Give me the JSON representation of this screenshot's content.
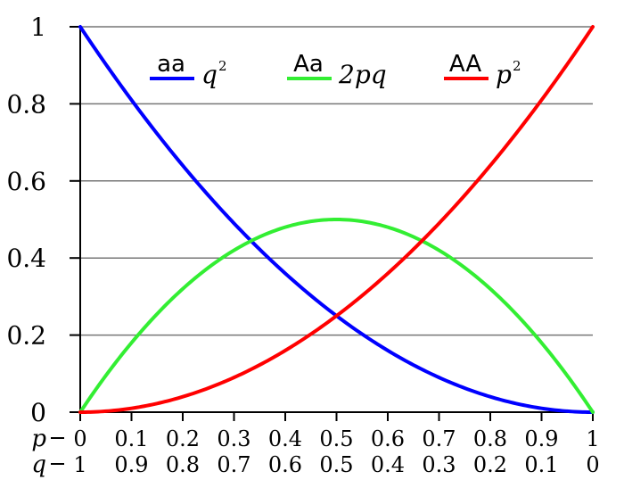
{
  "chart_data": {
    "type": "line",
    "title": "",
    "xlabel": "",
    "ylabel": "",
    "xlim": [
      0,
      1
    ],
    "ylim": [
      0,
      1
    ],
    "grid": "horizontal",
    "x_tick_rows": [
      {
        "label": "p",
        "ticks": [
          "0",
          "0.1",
          "0.2",
          "0.3",
          "0.4",
          "0.5",
          "0.6",
          "0.7",
          "0.8",
          "0.9",
          "1"
        ]
      },
      {
        "label": "q",
        "ticks": [
          "1",
          "0.9",
          "0.8",
          "0.7",
          "0.6",
          "0.5",
          "0.4",
          "0.3",
          "0.2",
          "0.1",
          "0"
        ]
      }
    ],
    "y_ticks": [
      "0",
      "0.2",
      "0.4",
      "0.6",
      "0.8",
      "1"
    ],
    "x": [
      0,
      0.1,
      0.2,
      0.3,
      0.4,
      0.5,
      0.6,
      0.7,
      0.8,
      0.9,
      1
    ],
    "legend_position": "top",
    "series": [
      {
        "name": "aa",
        "expression": "q",
        "superscript": "2",
        "color": "#0000ff",
        "values": [
          1,
          0.81,
          0.64,
          0.49,
          0.36,
          0.25,
          0.16,
          0.09,
          0.04,
          0.01,
          0
        ]
      },
      {
        "name": "Aa",
        "expression": "2pq",
        "superscript": "",
        "color": "#33ee33",
        "values": [
          0,
          0.18,
          0.32,
          0.42,
          0.48,
          0.5,
          0.48,
          0.42,
          0.32,
          0.18,
          0
        ]
      },
      {
        "name": "AA",
        "expression": "p",
        "superscript": "2",
        "color": "#ff0000",
        "values": [
          0,
          0.01,
          0.04,
          0.09,
          0.16,
          0.25,
          0.36,
          0.49,
          0.64,
          0.81,
          1
        ]
      }
    ]
  }
}
